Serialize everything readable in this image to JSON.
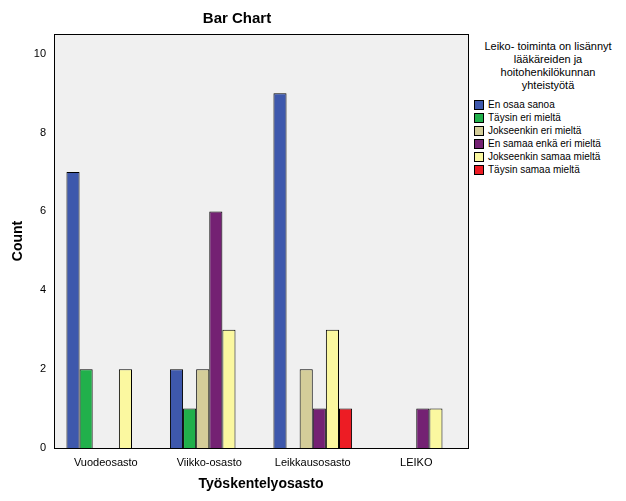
{
  "chart_data": {
    "type": "bar",
    "title": "Bar Chart",
    "x_label": "Työskentelyosasto",
    "y_label": "Count",
    "categories": [
      "Vuodeosasto",
      "Viikko-osasto",
      "Leikkausosasto",
      "LEIKO"
    ],
    "series": [
      {
        "name": "En osaa sanoa",
        "color": "#3e58ac",
        "values": [
          7,
          2,
          9,
          0
        ]
      },
      {
        "name": "Täysin eri mieltä",
        "color": "#21b04b",
        "values": [
          2,
          1,
          0,
          0
        ]
      },
      {
        "name": "Jokseenkin eri mieltä",
        "color": "#d4cd99",
        "values": [
          0,
          2,
          2,
          0
        ]
      },
      {
        "name": "En samaa enkä eri mieltä",
        "color": "#742173",
        "values": [
          0,
          6,
          1,
          1
        ]
      },
      {
        "name": "Jokseenkin samaa mieltä",
        "color": "#fbf8a0",
        "values": [
          2,
          3,
          3,
          1
        ]
      },
      {
        "name": "Täysin samaa mieltä",
        "color": "#ed1c24",
        "values": [
          0,
          0,
          1,
          0
        ]
      }
    ],
    "ylim": [
      0,
      10.5
    ],
    "yticks": [
      0,
      2,
      4,
      6,
      8,
      10
    ],
    "grid": false,
    "legend": "right",
    "legend_title": "Leiko- toiminta on lisännyt lääkäreiden ja hoitohenkilökunnan yhteistyötä"
  }
}
